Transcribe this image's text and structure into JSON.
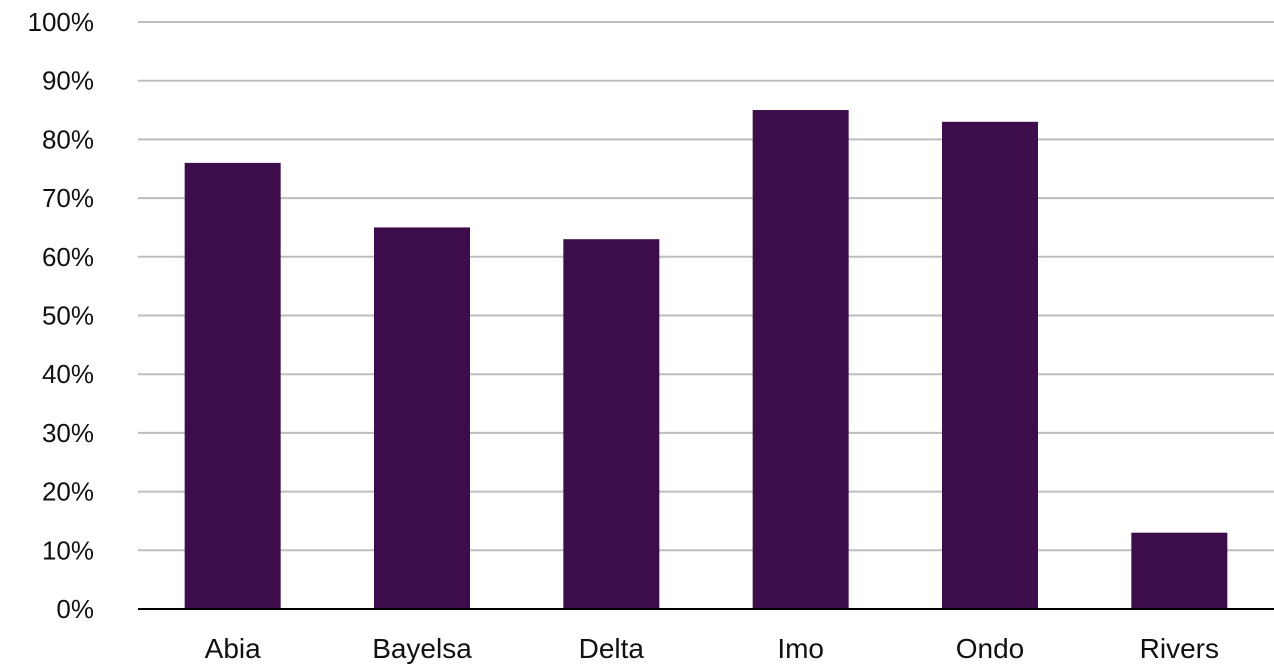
{
  "chart_data": {
    "type": "bar",
    "categories": [
      "Abia",
      "Bayelsa",
      "Delta",
      "Imo",
      "Ondo",
      "Rivers"
    ],
    "values": [
      76,
      65,
      63,
      85,
      83,
      13
    ],
    "ylim": [
      0,
      100
    ],
    "yticks": [
      0,
      10,
      20,
      30,
      40,
      50,
      60,
      70,
      80,
      90,
      100
    ],
    "ytick_labels": [
      "0%",
      "10%",
      "20%",
      "30%",
      "40%",
      "50%",
      "60%",
      "70%",
      "80%",
      "90%",
      "100%"
    ],
    "grid": true,
    "legend": "none",
    "bar_color": "#3d0c4a",
    "grid_color": "#bdbdbd",
    "axis_color": "#000000"
  }
}
